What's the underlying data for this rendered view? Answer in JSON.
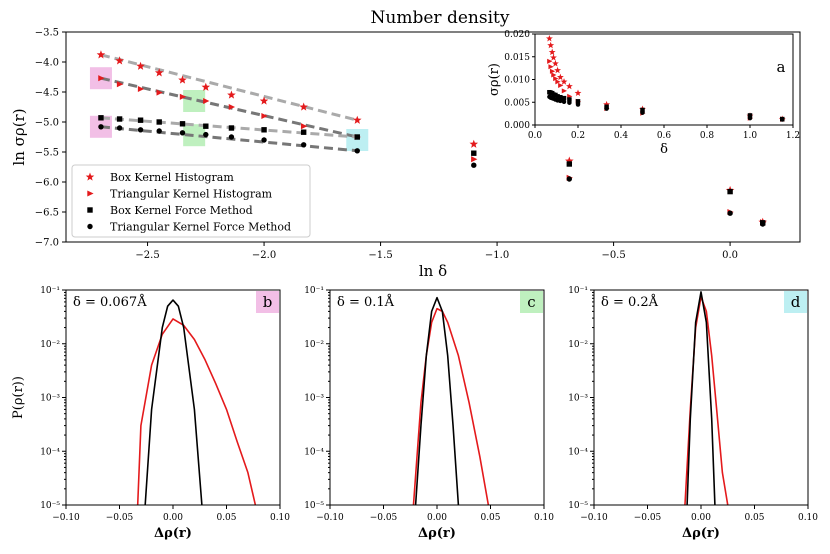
{
  "title": "Number density",
  "colors": {
    "red": "#e41a1c",
    "black": "#000000",
    "grey_light": "#aaaaaa",
    "grey_dark": "#777777",
    "hl_pink": "#f2bfe6",
    "hl_green": "#bff0bf",
    "hl_cyan": "#bdeff2"
  },
  "chart_data": [
    {
      "id": "main",
      "type": "scatter",
      "xlabel": "ln δ",
      "ylabel": "ln σρ(r)",
      "xlim": [
        -2.85,
        0.3
      ],
      "ylim": [
        -7.0,
        -3.5
      ],
      "xticks": [
        -2.5,
        -2.0,
        -1.5,
        -1.0,
        -0.5,
        0.0
      ],
      "xtick_labels": [
        "−2.5",
        "−2.0",
        "−1.5",
        "−1.0",
        "−0.5",
        "0.0"
      ],
      "yticks": [
        -7.0,
        -6.5,
        -6.0,
        -5.5,
        -5.0,
        -4.5,
        -4.0,
        -3.5
      ],
      "ytick_labels": [
        "−7.0",
        "−6.5",
        "−6.0",
        "−5.5",
        "−5.0",
        "−4.5",
        "−4.0",
        "−3.5"
      ],
      "legend": [
        "Box Kernel Histogram",
        "Triangular Kernel Histogram",
        "Box Kernel Force Method",
        "Triangular Kernel Force Method"
      ],
      "series": [
        {
          "name": "Box Kernel Histogram",
          "marker": "star",
          "color": "red",
          "x": [
            -2.7,
            -2.62,
            -2.53,
            -2.45,
            -2.35,
            -2.25,
            -2.14,
            -2.0,
            -1.83,
            -1.6,
            -1.1,
            -0.69,
            0.0,
            0.14
          ],
          "y": [
            -3.88,
            -3.98,
            -4.07,
            -4.18,
            -4.3,
            -4.42,
            -4.55,
            -4.65,
            -4.75,
            -4.97,
            -5.37,
            -5.65,
            -6.14,
            -6.67
          ]
        },
        {
          "name": "Triangular Kernel Histogram",
          "marker": "triangle",
          "color": "red",
          "x": [
            -2.7,
            -2.62,
            -2.53,
            -2.45,
            -2.35,
            -2.25,
            -2.14,
            -2.0,
            -1.83,
            -1.6,
            -1.1,
            -0.69,
            0.0,
            0.14
          ],
          "y": [
            -4.27,
            -4.37,
            -4.45,
            -4.51,
            -4.58,
            -4.65,
            -4.75,
            -4.9,
            -5.07,
            -5.25,
            -5.62,
            -5.93,
            -6.5,
            -6.67
          ]
        },
        {
          "name": "Box Kernel Force Method",
          "marker": "square",
          "color": "black",
          "x": [
            -2.7,
            -2.62,
            -2.53,
            -2.45,
            -2.35,
            -2.25,
            -2.14,
            -2.0,
            -1.83,
            -1.6,
            -1.1,
            -0.69,
            0.0,
            0.14
          ],
          "y": [
            -4.93,
            -4.95,
            -4.97,
            -5.0,
            -5.03,
            -5.07,
            -5.1,
            -5.13,
            -5.17,
            -5.25,
            -5.52,
            -5.7,
            -6.16,
            -6.68
          ]
        },
        {
          "name": "Triangular Kernel Force Method",
          "marker": "circle",
          "color": "black",
          "x": [
            -2.7,
            -2.62,
            -2.53,
            -2.45,
            -2.35,
            -2.25,
            -2.14,
            -2.0,
            -1.83,
            -1.6,
            -1.1,
            -0.69,
            0.0,
            0.14
          ],
          "y": [
            -5.08,
            -5.1,
            -5.13,
            -5.15,
            -5.18,
            -5.21,
            -5.25,
            -5.3,
            -5.38,
            -5.48,
            -5.72,
            -5.95,
            -6.52,
            -6.7
          ]
        }
      ],
      "fit_lines": [
        {
          "series": 0,
          "x": [
            -2.7,
            -1.6
          ],
          "y": [
            -3.88,
            -4.97
          ],
          "color": "grey_light"
        },
        {
          "series": 1,
          "x": [
            -2.7,
            -1.6
          ],
          "y": [
            -4.27,
            -5.25
          ],
          "color": "grey_dark"
        },
        {
          "series": 2,
          "x": [
            -2.7,
            -1.6
          ],
          "y": [
            -4.93,
            -5.25
          ],
          "color": "grey_light"
        },
        {
          "series": 3,
          "x": [
            -2.7,
            -1.6
          ],
          "y": [
            -5.08,
            -5.48
          ],
          "color": "grey_dark"
        }
      ],
      "highlight_boxes": [
        {
          "x": -2.7,
          "y": -4.27,
          "color": "hl_pink"
        },
        {
          "x": -2.7,
          "y": -5.08,
          "color": "hl_pink"
        },
        {
          "x": -2.3,
          "y": -4.65,
          "color": "hl_green"
        },
        {
          "x": -2.3,
          "y": -5.22,
          "color": "hl_green"
        },
        {
          "x": -1.6,
          "y": -5.3,
          "color": "hl_cyan"
        }
      ]
    },
    {
      "id": "inset",
      "type": "scatter",
      "panel_label": "a",
      "xlabel": "δ",
      "ylabel": "σρ(r)",
      "xlim": [
        0.0,
        1.2
      ],
      "ylim": [
        0.0,
        0.02
      ],
      "xticks": [
        0.0,
        0.2,
        0.4,
        0.6,
        0.8,
        1.0,
        1.2
      ],
      "xtick_labels": [
        "0.0",
        "0.2",
        "0.4",
        "0.6",
        "0.8",
        "1.0",
        "1.2"
      ],
      "yticks": [
        0.0,
        0.005,
        0.01,
        0.015,
        0.02
      ],
      "ytick_labels": [
        "0.000",
        "0.005",
        "0.010",
        "0.015",
        "0.020"
      ],
      "series": [
        {
          "name": "Box Kernel Histogram",
          "marker": "star",
          "color": "red",
          "x": [
            0.067,
            0.073,
            0.08,
            0.086,
            0.095,
            0.105,
            0.118,
            0.135,
            0.16,
            0.2,
            0.333,
            0.5,
            1.0,
            1.15
          ],
          "y": [
            0.019,
            0.0175,
            0.016,
            0.0148,
            0.0135,
            0.012,
            0.0105,
            0.0095,
            0.0085,
            0.007,
            0.0045,
            0.0035,
            0.002,
            0.0013
          ]
        },
        {
          "name": "Triangular Kernel Histogram",
          "marker": "triangle",
          "color": "red",
          "x": [
            0.067,
            0.073,
            0.08,
            0.086,
            0.095,
            0.105,
            0.118,
            0.135,
            0.16,
            0.2,
            0.333,
            0.5,
            1.0,
            1.15
          ],
          "y": [
            0.014,
            0.0128,
            0.0118,
            0.011,
            0.0102,
            0.0095,
            0.0087,
            0.0075,
            0.0063,
            0.0052,
            0.0036,
            0.0026,
            0.0015,
            0.0013
          ]
        },
        {
          "name": "Box Kernel Force Method",
          "marker": "square",
          "color": "black",
          "x": [
            0.067,
            0.073,
            0.08,
            0.086,
            0.095,
            0.105,
            0.118,
            0.135,
            0.16,
            0.2,
            0.333,
            0.5,
            1.0,
            1.15
          ],
          "y": [
            0.0072,
            0.0071,
            0.007,
            0.0067,
            0.0066,
            0.0063,
            0.0061,
            0.0059,
            0.0056,
            0.0052,
            0.004,
            0.0033,
            0.0021,
            0.0013
          ]
        },
        {
          "name": "Triangular Kernel Force Method",
          "marker": "circle",
          "color": "black",
          "x": [
            0.067,
            0.073,
            0.08,
            0.086,
            0.095,
            0.105,
            0.118,
            0.135,
            0.16,
            0.2,
            0.333,
            0.5,
            1.0,
            1.15
          ],
          "y": [
            0.0062,
            0.006,
            0.0059,
            0.0058,
            0.0056,
            0.0054,
            0.0053,
            0.0051,
            0.0049,
            0.0045,
            0.0036,
            0.0027,
            0.0015,
            0.0012
          ]
        }
      ]
    },
    {
      "id": "b",
      "type": "line",
      "panel_label": "b",
      "annotation": "δ = 0.067Å",
      "tag_color": "hl_pink",
      "xlabel": "Δρ(r)",
      "ylabel": "P(ρ(r))",
      "yscale": "log",
      "xlim": [
        -0.1,
        0.1
      ],
      "ylim": [
        1e-05,
        0.1
      ],
      "series": [
        {
          "name": "Histogram",
          "color": "red",
          "x": [
            -0.033,
            -0.03,
            -0.02,
            -0.01,
            0.0,
            0.01,
            0.02,
            0.03,
            0.04,
            0.05,
            0.06,
            0.07,
            0.077
          ],
          "y": [
            1e-05,
            0.0003,
            0.004,
            0.015,
            0.029,
            0.022,
            0.012,
            0.005,
            0.0018,
            0.0006,
            0.00015,
            4e-05,
            1e-05
          ]
        },
        {
          "name": "Force Method",
          "color": "black",
          "x": [
            -0.026,
            -0.02,
            -0.01,
            -0.005,
            0.0,
            0.005,
            0.01,
            0.02,
            0.027
          ],
          "y": [
            1e-05,
            0.0006,
            0.02,
            0.05,
            0.065,
            0.05,
            0.02,
            0.0006,
            1e-05
          ]
        }
      ]
    },
    {
      "id": "c",
      "type": "line",
      "panel_label": "c",
      "annotation": "δ = 0.1Å",
      "tag_color": "hl_green",
      "xlabel": "Δρ(r)",
      "ylabel": "",
      "yscale": "log",
      "xlim": [
        -0.1,
        0.1
      ],
      "ylim": [
        1e-05,
        0.1
      ],
      "series": [
        {
          "name": "Histogram",
          "color": "red",
          "x": [
            -0.022,
            -0.015,
            -0.01,
            -0.005,
            0.0,
            0.005,
            0.01,
            0.02,
            0.03,
            0.04,
            0.048
          ],
          "y": [
            1e-05,
            0.0008,
            0.006,
            0.025,
            0.045,
            0.04,
            0.025,
            0.006,
            0.0008,
            8e-05,
            1e-05
          ]
        },
        {
          "name": "Force Method",
          "color": "black",
          "x": [
            -0.02,
            -0.015,
            -0.01,
            -0.005,
            0.0,
            0.005,
            0.01,
            0.015,
            0.02
          ],
          "y": [
            1e-05,
            0.0003,
            0.006,
            0.04,
            0.072,
            0.04,
            0.006,
            0.0003,
            1e-05
          ]
        }
      ]
    },
    {
      "id": "d",
      "type": "line",
      "panel_label": "d",
      "annotation": "δ = 0.2Å",
      "tag_color": "hl_cyan",
      "xlabel": "Δρ(r)",
      "ylabel": "",
      "yscale": "log",
      "xlim": [
        -0.1,
        0.1
      ],
      "ylim": [
        1e-05,
        0.1
      ],
      "series": [
        {
          "name": "Histogram",
          "color": "red",
          "x": [
            -0.015,
            -0.01,
            -0.005,
            0.0,
            0.005,
            0.01,
            0.015,
            0.02,
            0.025
          ],
          "y": [
            1e-05,
            0.0006,
            0.02,
            0.075,
            0.04,
            0.006,
            0.0005,
            4e-05,
            1e-05
          ]
        },
        {
          "name": "Force Method",
          "color": "black",
          "x": [
            -0.013,
            -0.01,
            -0.005,
            0.0,
            0.005,
            0.01,
            0.013
          ],
          "y": [
            1e-05,
            0.0004,
            0.025,
            0.092,
            0.025,
            0.0004,
            1e-05
          ]
        }
      ],
      "xtick_labels": [
        "−0.10",
        "−0.05",
        "0.00",
        "0.05",
        "0.10"
      ],
      "ytick_labels": [
        "10⁻⁵",
        "10⁻⁴",
        "10⁻³",
        "10⁻²",
        "10⁻¹"
      ]
    }
  ]
}
